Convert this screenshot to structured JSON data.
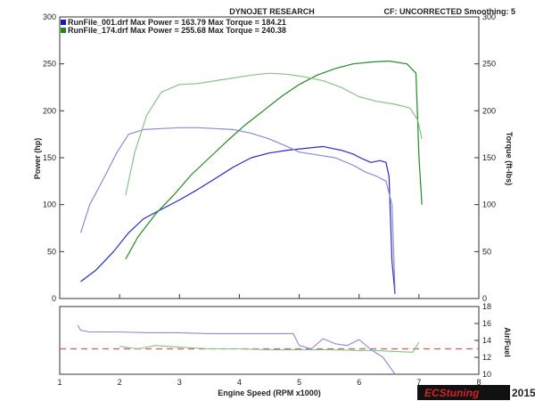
{
  "header": {
    "title": "DYNOJET RESEARCH",
    "info": "CF: UNCORRECTED  Smoothing: 5"
  },
  "legend": [
    {
      "text": "RunFile_001.drf Max Power = 163.79      Max Torque = 184.21",
      "color": "#1a1ab4"
    },
    {
      "text": "RunFile_174.drf Max Power = 255.68      Max Torque = 240.38",
      "color": "#1d8a1d"
    }
  ],
  "brand": {
    "name": "ECStuning",
    "year": "2015"
  },
  "chart_data": [
    {
      "type": "line",
      "xlabel": "Engine Speed (RPM x1000)",
      "ylabel": "Power (hp)",
      "y2label": "Torque (ft-lbs)",
      "xlim": [
        1,
        8
      ],
      "ylim": [
        0,
        300
      ],
      "y2lim": [
        0,
        300
      ],
      "xticks": [
        1,
        2,
        3,
        4,
        5,
        6,
        7,
        8
      ],
      "yticks": [
        0,
        50,
        100,
        150,
        200,
        250,
        300
      ],
      "y2ticks": [
        0,
        50,
        100,
        150,
        200,
        250,
        300
      ],
      "grid": false,
      "series": [
        {
          "name": "RunFile_001.drf",
          "quantity": "power",
          "color": "#2a2ac8",
          "x": [
            1.35,
            1.6,
            1.9,
            2.15,
            2.4,
            2.7,
            3.0,
            3.3,
            3.6,
            3.9,
            4.2,
            4.5,
            4.8,
            5.1,
            5.4,
            5.7,
            5.9,
            6.05,
            6.2,
            6.35,
            6.45,
            6.5,
            6.55,
            6.6
          ],
          "y": [
            18,
            30,
            50,
            70,
            85,
            95,
            105,
            116,
            128,
            140,
            150,
            155,
            158,
            160,
            162,
            158,
            154,
            149,
            145,
            147,
            145,
            130,
            40,
            5
          ]
        },
        {
          "name": "RunFile_001.drf",
          "quantity": "torque",
          "color": "#8a8ad8",
          "x": [
            1.35,
            1.5,
            1.75,
            1.95,
            2.15,
            2.4,
            2.7,
            3.0,
            3.3,
            3.6,
            3.9,
            4.2,
            4.5,
            4.8,
            5.0,
            5.3,
            5.6,
            5.9,
            6.1,
            6.3,
            6.45,
            6.55,
            6.6
          ],
          "y": [
            70,
            100,
            130,
            155,
            175,
            180,
            181,
            182,
            182,
            181,
            180,
            176,
            170,
            162,
            156,
            153,
            150,
            142,
            135,
            130,
            125,
            100,
            10
          ]
        },
        {
          "name": "RunFile_174.drf",
          "quantity": "power",
          "color": "#228b22",
          "x": [
            2.1,
            2.3,
            2.6,
            2.9,
            3.2,
            3.5,
            3.8,
            4.1,
            4.4,
            4.7,
            5.0,
            5.3,
            5.6,
            5.9,
            6.2,
            6.5,
            6.8,
            6.95,
            7.0,
            7.05
          ],
          "y": [
            42,
            65,
            90,
            110,
            132,
            150,
            168,
            185,
            200,
            215,
            228,
            238,
            245,
            250,
            252,
            253,
            250,
            240,
            150,
            100
          ]
        },
        {
          "name": "RunFile_174.drf",
          "quantity": "torque",
          "color": "#86c386",
          "x": [
            2.1,
            2.25,
            2.45,
            2.7,
            3.0,
            3.3,
            3.6,
            3.9,
            4.2,
            4.5,
            4.8,
            5.1,
            5.4,
            5.7,
            6.0,
            6.3,
            6.6,
            6.85,
            6.98,
            7.05
          ],
          "y": [
            110,
            155,
            195,
            220,
            228,
            229,
            232,
            235,
            238,
            240,
            239,
            236,
            232,
            225,
            215,
            210,
            207,
            203,
            190,
            170
          ]
        }
      ]
    },
    {
      "type": "line",
      "ylabel": "Air/Fuel",
      "xlabel": "Engine Speed (RPM x1000)",
      "xlim": [
        1,
        8
      ],
      "ylim": [
        10,
        18
      ],
      "yticks": [
        10,
        12,
        14,
        16,
        18
      ],
      "reference_line": {
        "y": 13.0,
        "color": "#d05a5a",
        "style": "dashed"
      },
      "series": [
        {
          "name": "RunFile_001.drf",
          "quantity": "air-fuel",
          "color": "#8a8ad8",
          "x": [
            1.3,
            1.35,
            1.5,
            2.0,
            2.5,
            3.0,
            3.5,
            4.0,
            4.5,
            4.9,
            5.0,
            5.2,
            5.4,
            5.6,
            5.8,
            6.0,
            6.2,
            6.4,
            6.5,
            6.6
          ],
          "y": [
            15.8,
            15.2,
            15.0,
            15.0,
            14.9,
            14.9,
            14.8,
            14.8,
            14.8,
            14.8,
            13.4,
            13.0,
            14.2,
            13.6,
            13.4,
            14.1,
            12.9,
            12.0,
            11.0,
            10.0
          ]
        },
        {
          "name": "RunFile_174.drf",
          "quantity": "air-fuel",
          "color": "#86c386",
          "x": [
            2.0,
            2.3,
            2.6,
            3.0,
            3.5,
            4.0,
            4.5,
            5.0,
            5.5,
            6.0,
            6.3,
            6.6,
            6.9,
            7.0
          ],
          "y": [
            13.3,
            13.0,
            13.4,
            13.2,
            13.0,
            13.0,
            12.9,
            12.9,
            12.9,
            12.8,
            12.8,
            12.7,
            12.6,
            13.8
          ]
        }
      ]
    }
  ]
}
